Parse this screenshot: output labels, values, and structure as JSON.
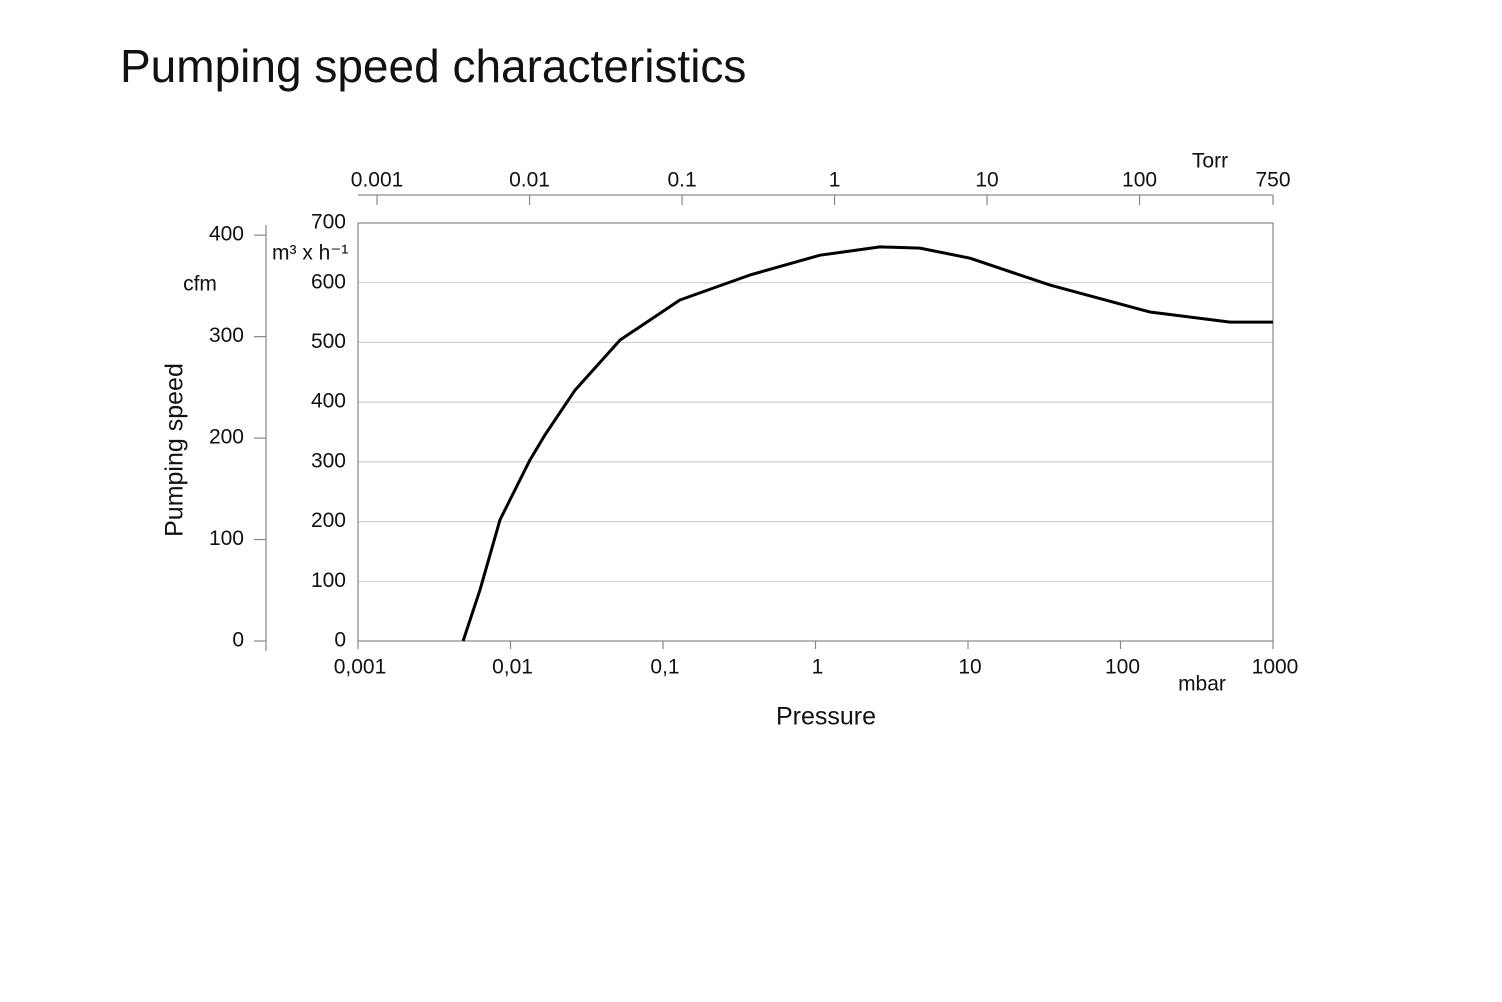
{
  "chart_data": {
    "type": "line",
    "title": "Pumping speed characteristics",
    "xlabel": "Pressure",
    "ylabel": "Pumping speed",
    "x_unit_label": "mbar",
    "x2_unit_label": "Torr",
    "y_unit_label": "m³ x h⁻¹",
    "y2_unit_label": "cfm",
    "xscale": "log",
    "x2scale": "log",
    "grid": true,
    "xlim": [
      0.001,
      1000
    ],
    "xticks": [
      {
        "value": 0.001,
        "label": "0,001"
      },
      {
        "value": 0.01,
        "label": "0,01"
      },
      {
        "value": 0.1,
        "label": "0,1"
      },
      1,
      10,
      100,
      1000
    ],
    "x2lim": [
      0.00075,
      750
    ],
    "x2ticks": [
      0.001,
      0.01,
      0.1,
      1,
      10,
      100,
      750
    ],
    "ylim": [
      0,
      700
    ],
    "yticks": [
      0,
      100,
      200,
      300,
      400,
      500,
      600,
      700
    ],
    "y2lim": [
      0,
      412
    ],
    "y2ticks": [
      0,
      100,
      200,
      300,
      400
    ],
    "series": [
      {
        "name": "Pumping speed",
        "color": "#000000",
        "x": [
          0.00489,
          0.0063,
          0.00853,
          0.0134,
          0.0168,
          0.0265,
          0.0523,
          0.129,
          0.372,
          1.07,
          2.65,
          4.84,
          10.3,
          34.5,
          156,
          523,
          1000
        ],
        "values": [
          0,
          85,
          203,
          303,
          345,
          420,
          504,
          571,
          613,
          646,
          660,
          658,
          641,
          596,
          551,
          534,
          534
        ]
      }
    ]
  }
}
